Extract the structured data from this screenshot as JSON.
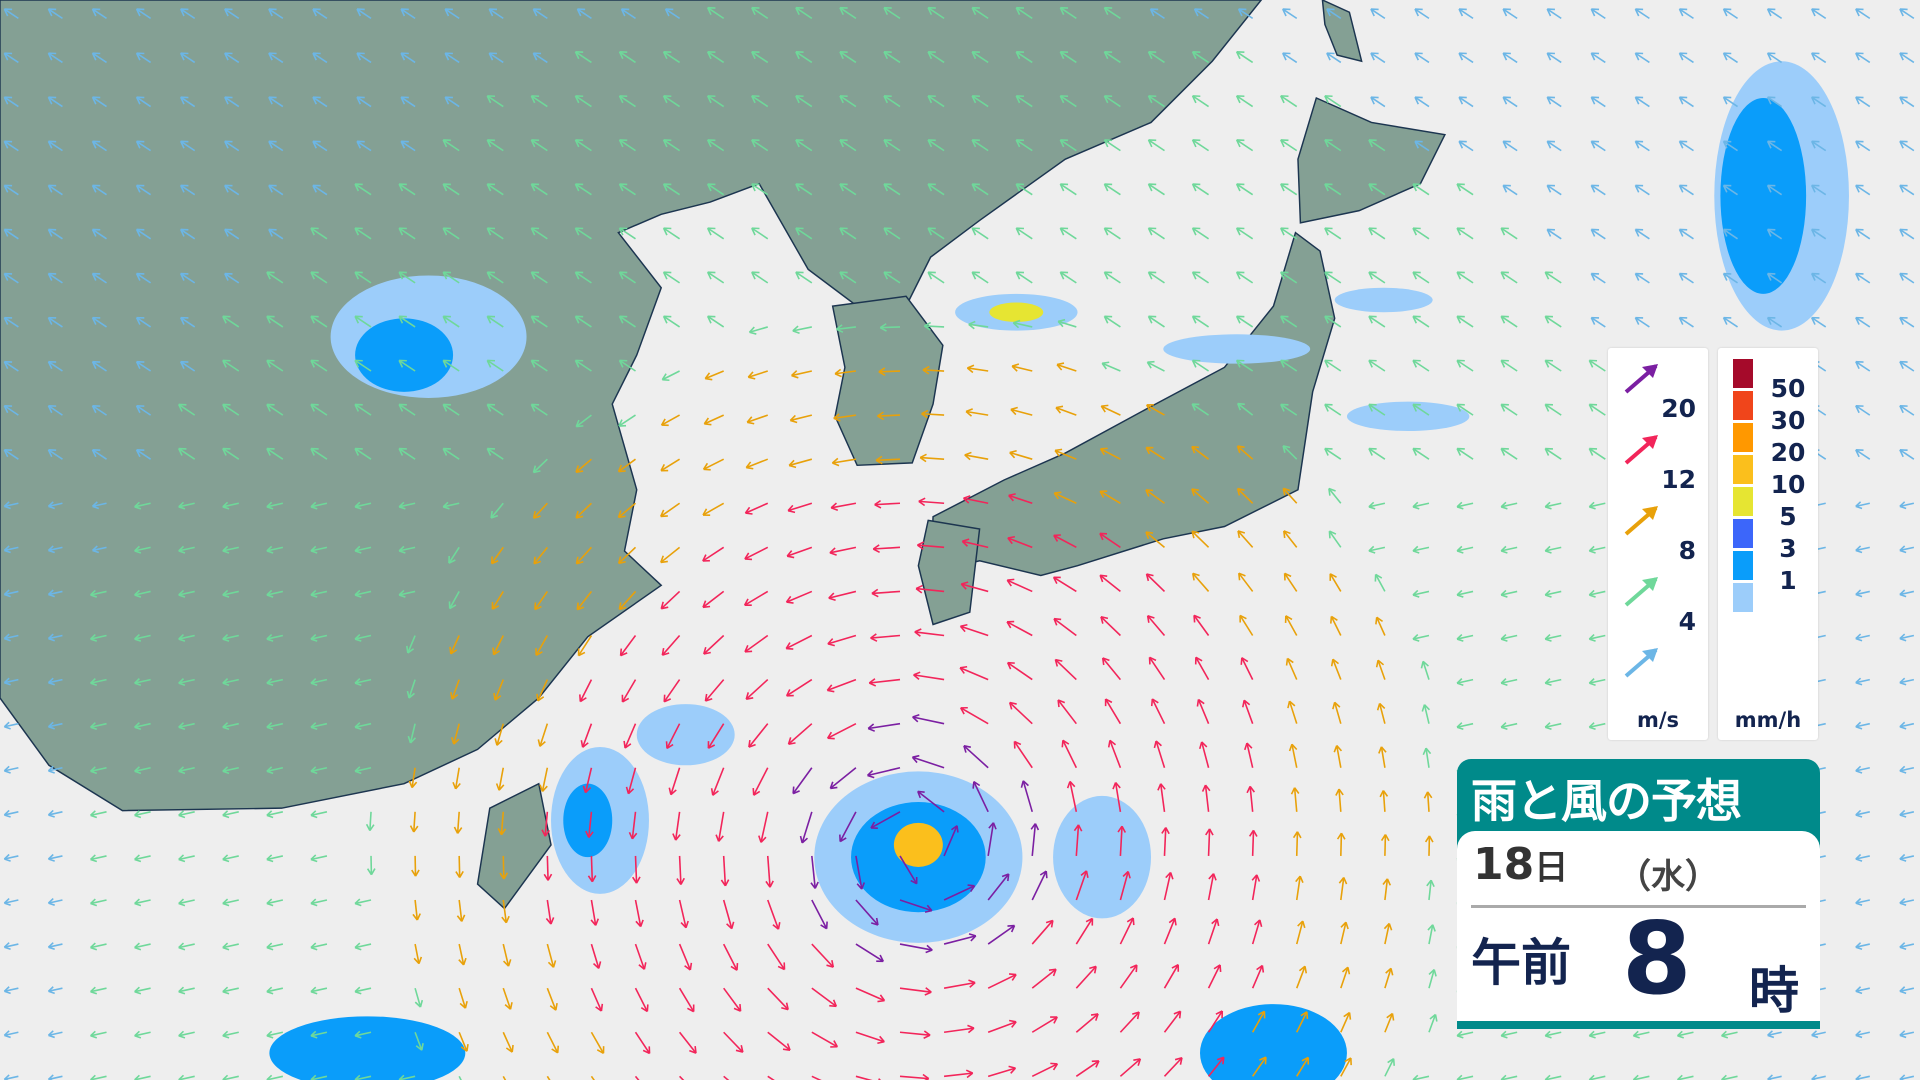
{
  "title": "雨と風の予想",
  "date": {
    "day": "18",
    "day_suffix": "日",
    "weekday": "（水）"
  },
  "time": {
    "period": "午前",
    "hour": "8",
    "suffix": "時"
  },
  "wind_legend": {
    "unit": "m/s",
    "items": [
      {
        "value": "20",
        "color": "#7b1fa2"
      },
      {
        "value": "12",
        "color": "#f2255a"
      },
      {
        "value": "8",
        "color": "#e8a10a"
      },
      {
        "value": "4",
        "color": "#6fd89a"
      },
      {
        "value": "",
        "color": "#6cb6e6"
      }
    ]
  },
  "rain_legend": {
    "unit": "mm/h",
    "items": [
      {
        "value": "50",
        "color": "#a50a2a"
      },
      {
        "value": "30",
        "color": "#f0451b"
      },
      {
        "value": "20",
        "color": "#ff9800"
      },
      {
        "value": "10",
        "color": "#fbbf1c"
      },
      {
        "value": "5",
        "color": "#e6e532"
      },
      {
        "value": "3",
        "color": "#3c66fa"
      },
      {
        "value": "1",
        "color": "#0a9dfa"
      },
      {
        "value": "",
        "color": "#9ccdfa"
      }
    ]
  },
  "colors": {
    "land": "#84a094",
    "sea": "#eeeeee",
    "accent": "#008a8a"
  }
}
